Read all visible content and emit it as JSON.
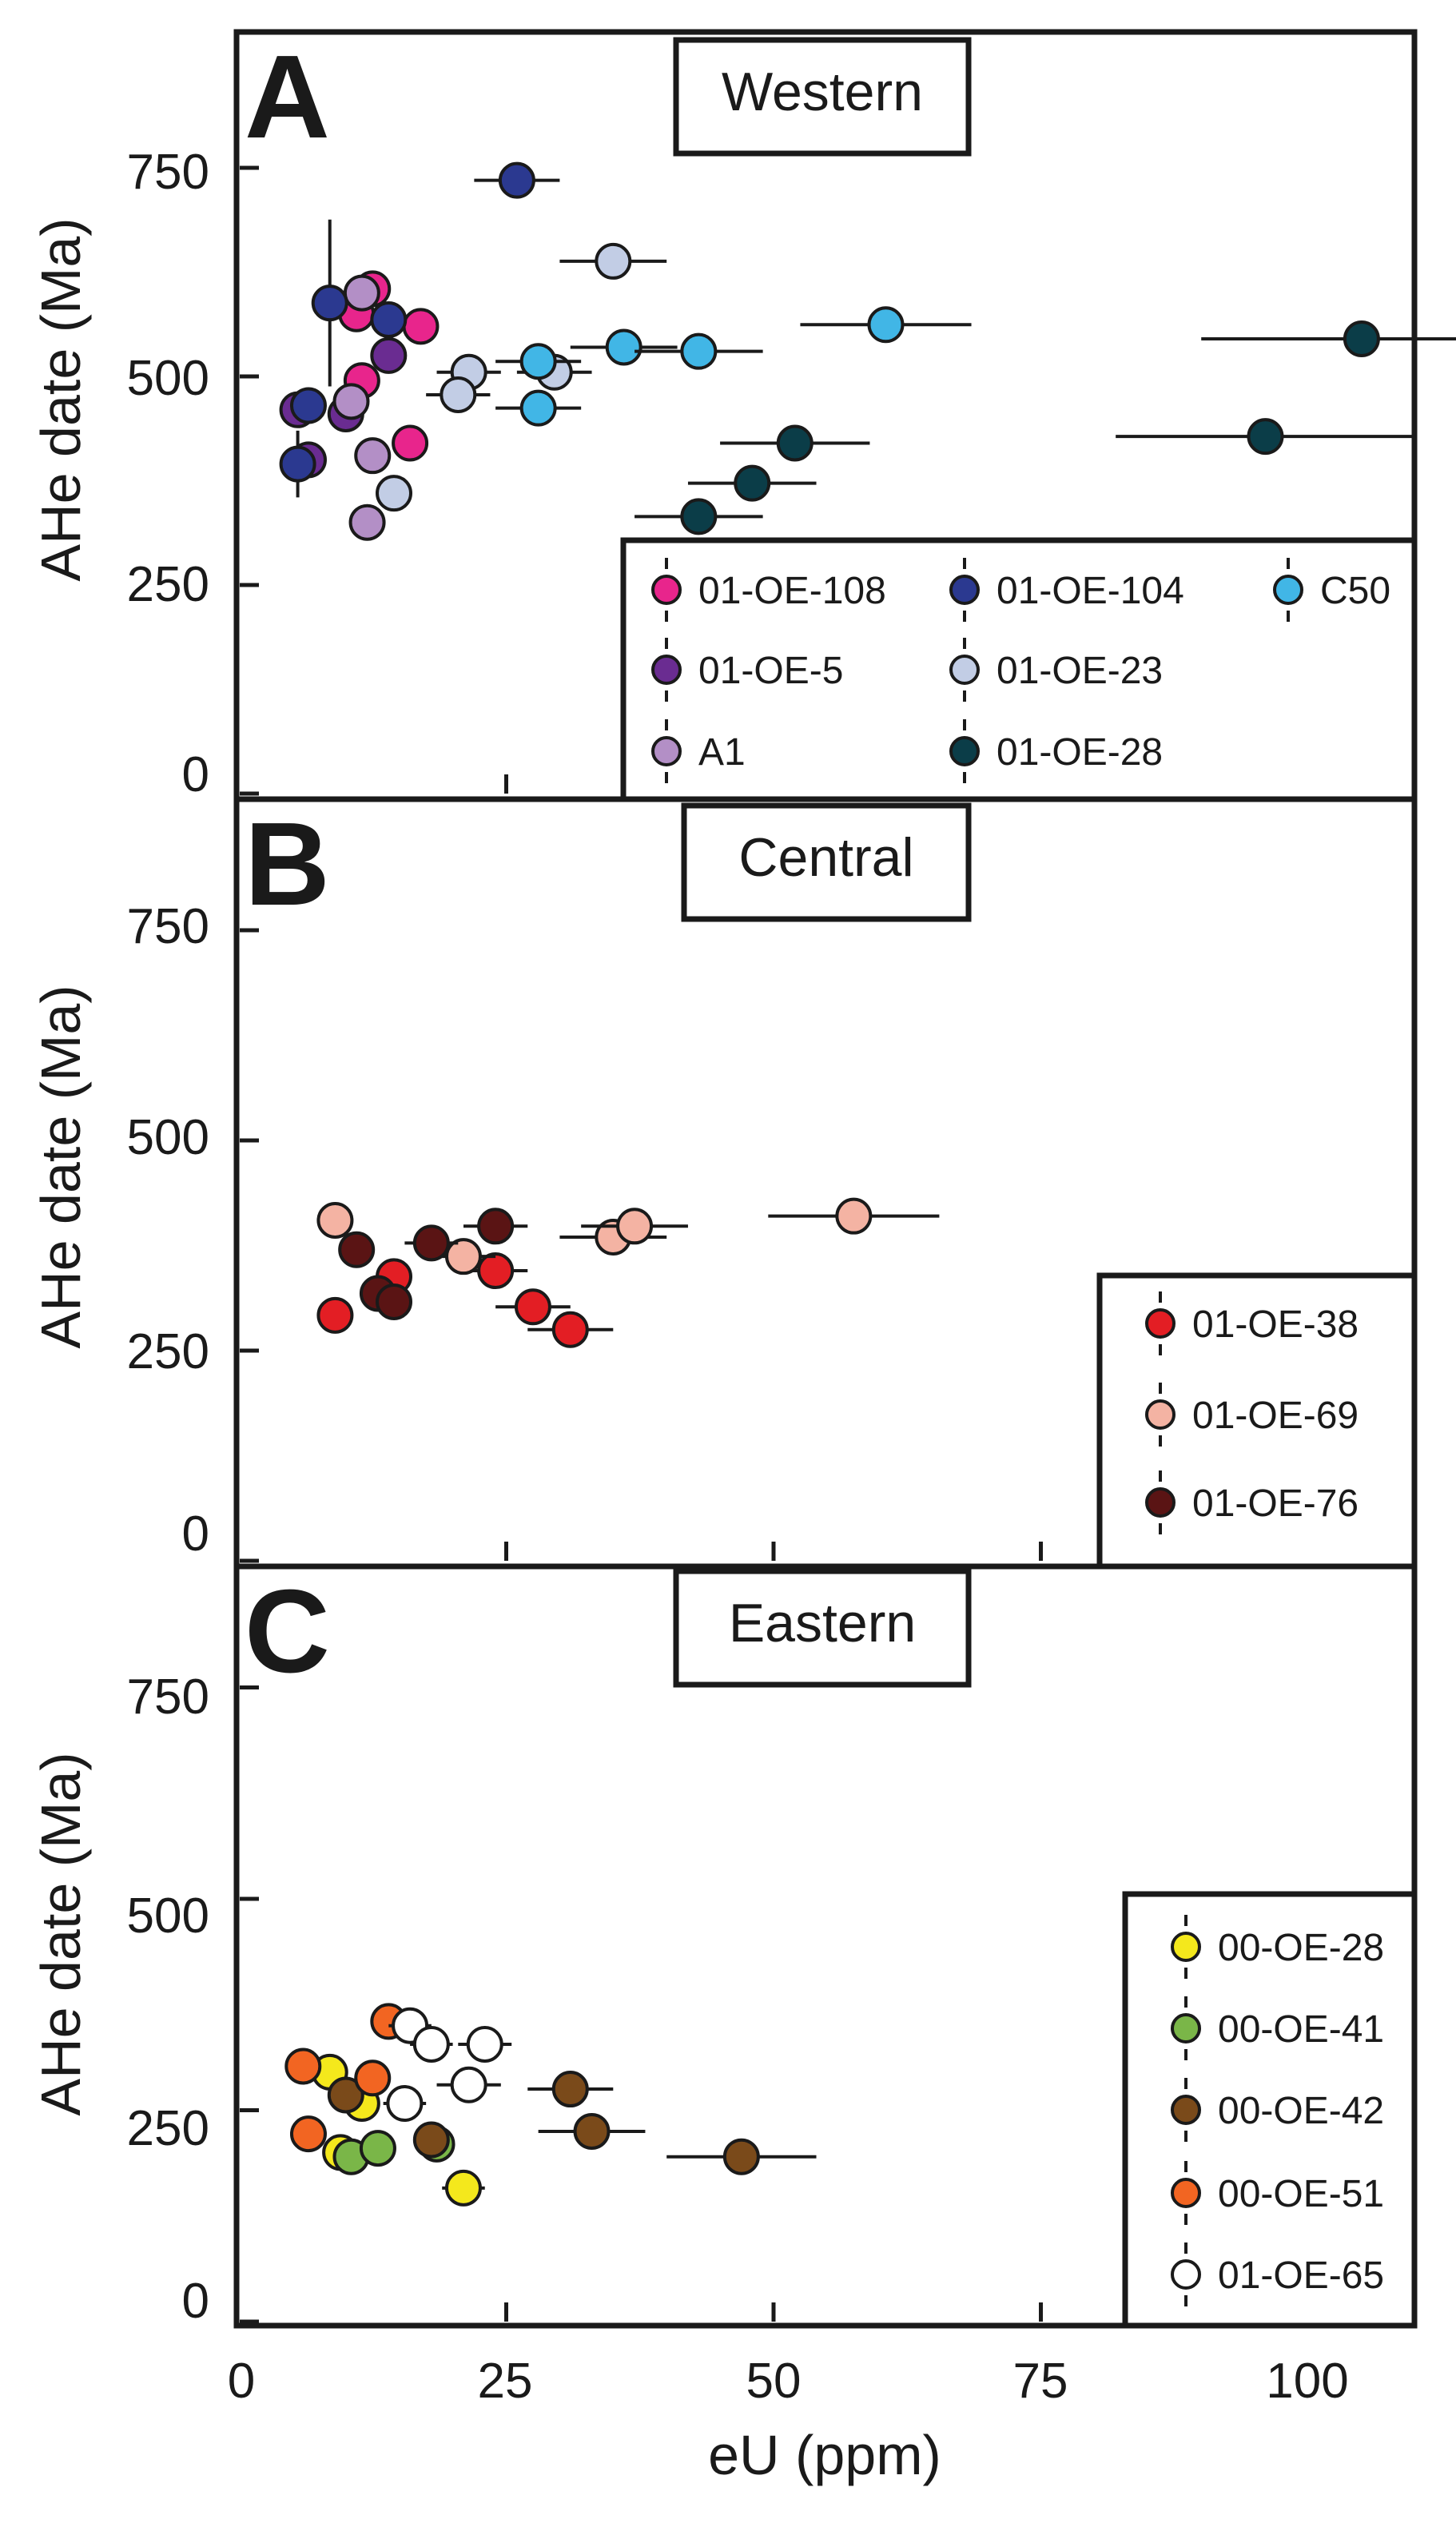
{
  "chart_data": [
    {
      "type": "scatter",
      "panel_letter": "A",
      "title": "Western",
      "xlabel": "",
      "ylabel": "AHe date (Ma)",
      "xlim": [
        0,
        110
      ],
      "ylim": [
        0,
        900
      ],
      "yticks": [
        0,
        250,
        500,
        750
      ],
      "legend": "bottom-right",
      "series": [
        {
          "name": "01-OE-108",
          "color": "#e8258c",
          "points": [
            {
              "x": 12.5,
              "y": 605,
              "xerr": 1.0,
              "yerr": 18
            },
            {
              "x": 11.0,
              "y": 575,
              "xerr": 1.0,
              "yerr": 18
            },
            {
              "x": 17.0,
              "y": 560,
              "xerr": 1.5,
              "yerr": 18
            },
            {
              "x": 11.5,
              "y": 495,
              "xerr": 1.0,
              "yerr": 15
            },
            {
              "x": 16.0,
              "y": 420,
              "xerr": 1.5,
              "yerr": 15
            }
          ]
        },
        {
          "name": "01-OE-5",
          "color": "#6a2c91",
          "points": [
            {
              "x": 5.5,
              "y": 460,
              "xerr": 0.8,
              "yerr": 15
            },
            {
              "x": 10.0,
              "y": 455,
              "xerr": 1.0,
              "yerr": 15
            },
            {
              "x": 14.0,
              "y": 525,
              "xerr": 1.0,
              "yerr": 15
            },
            {
              "x": 6.5,
              "y": 400,
              "xerr": 0.8,
              "yerr": 15
            }
          ]
        },
        {
          "name": "A1",
          "color": "#b38fc6",
          "points": [
            {
              "x": 11.5,
              "y": 600,
              "xerr": 1.0,
              "yerr": 15
            },
            {
              "x": 10.5,
              "y": 470,
              "xerr": 1.0,
              "yerr": 15
            },
            {
              "x": 12.5,
              "y": 405,
              "xerr": 1.0,
              "yerr": 15
            },
            {
              "x": 12.0,
              "y": 325,
              "xerr": 1.0,
              "yerr": 15
            }
          ]
        },
        {
          "name": "01-OE-104",
          "color": "#2b3990",
          "points": [
            {
              "x": 26.0,
              "y": 735,
              "xerr": 4.0,
              "yerr": 15
            },
            {
              "x": 8.5,
              "y": 588,
              "xerr": 1.0,
              "yerr": 100
            },
            {
              "x": 14.0,
              "y": 568,
              "xerr": 1.0,
              "yerr": 18
            },
            {
              "x": 6.5,
              "y": 465,
              "xerr": 1.0,
              "yerr": 18
            },
            {
              "x": 5.5,
              "y": 395,
              "xerr": 1.0,
              "yerr": 40
            }
          ]
        },
        {
          "name": "01-OE-23",
          "color": "#c2cde5",
          "points": [
            {
              "x": 35.0,
              "y": 638,
              "xerr": 5.0,
              "yerr": 18
            },
            {
              "x": 21.5,
              "y": 505,
              "xerr": 3.0,
              "yerr": 15
            },
            {
              "x": 20.5,
              "y": 478,
              "xerr": 3.0,
              "yerr": 15
            },
            {
              "x": 29.5,
              "y": 505,
              "xerr": 3.5,
              "yerr": 15
            },
            {
              "x": 14.5,
              "y": 360,
              "xerr": 1.5,
              "yerr": 15
            }
          ]
        },
        {
          "name": "C50",
          "color": "#41b6e6",
          "points": [
            {
              "x": 60.5,
              "y": 562,
              "xerr": 8.0,
              "yerr": 15
            },
            {
              "x": 36.0,
              "y": 535,
              "xerr": 5.0,
              "yerr": 15
            },
            {
              "x": 43.0,
              "y": 530,
              "xerr": 6.0,
              "yerr": 15
            },
            {
              "x": 28.0,
              "y": 518,
              "xerr": 4.0,
              "yerr": 15
            },
            {
              "x": 28.0,
              "y": 462,
              "xerr": 4.0,
              "yerr": 15
            }
          ]
        },
        {
          "name": "01-OE-28",
          "color": "#0b3d48",
          "points": [
            {
              "x": 105.0,
              "y": 545,
              "xerr": 15.0,
              "yerr": 15
            },
            {
              "x": 96.0,
              "y": 428,
              "xerr": 14.0,
              "yerr": 15
            },
            {
              "x": 52.0,
              "y": 420,
              "xerr": 7.0,
              "yerr": 15
            },
            {
              "x": 48.0,
              "y": 372,
              "xerr": 6.0,
              "yerr": 15
            },
            {
              "x": 43.0,
              "y": 332,
              "xerr": 6.0,
              "yerr": 15
            }
          ]
        }
      ]
    },
    {
      "type": "scatter",
      "panel_letter": "B",
      "title": "Central",
      "xlabel": "",
      "ylabel": "AHe date (Ma)",
      "xlim": [
        0,
        110
      ],
      "ylim": [
        0,
        900
      ],
      "yticks": [
        0,
        250,
        500,
        750
      ],
      "legend": "bottom-right",
      "series": [
        {
          "name": "01-OE-38",
          "color": "#e31e24",
          "points": [
            {
              "x": 9.0,
              "y": 292,
              "xerr": 1.0,
              "yerr": 15
            },
            {
              "x": 14.5,
              "y": 338,
              "xerr": 1.5,
              "yerr": 18
            },
            {
              "x": 24.0,
              "y": 345,
              "xerr": 3.0,
              "yerr": 15
            },
            {
              "x": 27.5,
              "y": 302,
              "xerr": 3.5,
              "yerr": 15
            },
            {
              "x": 31.0,
              "y": 275,
              "xerr": 4.0,
              "yerr": 15
            }
          ]
        },
        {
          "name": "01-OE-69",
          "color": "#f4b3a3",
          "points": [
            {
              "x": 9.0,
              "y": 405,
              "xerr": 1.0,
              "yerr": 20
            },
            {
              "x": 21.0,
              "y": 362,
              "xerr": 3.0,
              "yerr": 15
            },
            {
              "x": 35.0,
              "y": 385,
              "xerr": 5.0,
              "yerr": 15
            },
            {
              "x": 37.0,
              "y": 398,
              "xerr": 5.0,
              "yerr": 15
            },
            {
              "x": 57.5,
              "y": 410,
              "xerr": 8.0,
              "yerr": 15
            }
          ]
        },
        {
          "name": "01-OE-76",
          "color": "#5a1414",
          "points": [
            {
              "x": 11.0,
              "y": 370,
              "xerr": 1.5,
              "yerr": 15
            },
            {
              "x": 18.0,
              "y": 378,
              "xerr": 2.5,
              "yerr": 15
            },
            {
              "x": 24.0,
              "y": 398,
              "xerr": 3.0,
              "yerr": 15
            },
            {
              "x": 13.0,
              "y": 318,
              "xerr": 1.5,
              "yerr": 15
            },
            {
              "x": 14.5,
              "y": 308,
              "xerr": 1.5,
              "yerr": 15
            }
          ]
        }
      ]
    },
    {
      "type": "scatter",
      "panel_letter": "C",
      "title": "Eastern",
      "xlabel": "eU (ppm)",
      "ylabel": "AHe date (Ma)",
      "xlim": [
        0,
        110
      ],
      "ylim": [
        0,
        900
      ],
      "xticks": [
        0,
        25,
        50,
        75,
        100
      ],
      "yticks": [
        0,
        250,
        500,
        750
      ],
      "legend": "bottom-right",
      "series": [
        {
          "name": "00-OE-28",
          "color": "#f4e81c",
          "points": [
            {
              "x": 8.5,
              "y": 295,
              "xerr": 1.0,
              "yerr": 15
            },
            {
              "x": 11.5,
              "y": 258,
              "xerr": 1.0,
              "yerr": 15
            },
            {
              "x": 9.5,
              "y": 200,
              "xerr": 1.0,
              "yerr": 15
            },
            {
              "x": 21.0,
              "y": 158,
              "xerr": 2.0,
              "yerr": 15
            }
          ]
        },
        {
          "name": "00-OE-41",
          "color": "#7ab648",
          "points": [
            {
              "x": 10.5,
              "y": 195,
              "xerr": 1.0,
              "yerr": 15
            },
            {
              "x": 13.0,
              "y": 205,
              "xerr": 1.0,
              "yerr": 15
            },
            {
              "x": 18.5,
              "y": 210,
              "xerr": 1.5,
              "yerr": 15
            }
          ]
        },
        {
          "name": "00-OE-42",
          "color": "#7a4a1a",
          "points": [
            {
              "x": 10.0,
              "y": 268,
              "xerr": 1.0,
              "yerr": 15
            },
            {
              "x": 18.0,
              "y": 215,
              "xerr": 1.5,
              "yerr": 15
            },
            {
              "x": 31.0,
              "y": 275,
              "xerr": 4.0,
              "yerr": 15
            },
            {
              "x": 33.0,
              "y": 225,
              "xerr": 5.0,
              "yerr": 15
            },
            {
              "x": 47.0,
              "y": 195,
              "xerr": 7.0,
              "yerr": 15
            }
          ]
        },
        {
          "name": "00-OE-51",
          "color": "#f26522",
          "points": [
            {
              "x": 6.0,
              "y": 302,
              "xerr": 1.0,
              "yerr": 15
            },
            {
              "x": 6.5,
              "y": 222,
              "xerr": 1.0,
              "yerr": 15
            },
            {
              "x": 12.5,
              "y": 288,
              "xerr": 1.0,
              "yerr": 15
            },
            {
              "x": 14.0,
              "y": 355,
              "xerr": 1.5,
              "yerr": 15
            }
          ]
        },
        {
          "name": "01-OE-65",
          "color": "#ffffff",
          "points": [
            {
              "x": 16.0,
              "y": 350,
              "xerr": 2.0,
              "yerr": 15
            },
            {
              "x": 18.0,
              "y": 328,
              "xerr": 2.0,
              "yerr": 15
            },
            {
              "x": 23.0,
              "y": 328,
              "xerr": 2.5,
              "yerr": 15
            },
            {
              "x": 21.5,
              "y": 280,
              "xerr": 3.0,
              "yerr": 15
            },
            {
              "x": 15.5,
              "y": 258,
              "xerr": 2.0,
              "yerr": 15
            }
          ]
        }
      ]
    }
  ]
}
